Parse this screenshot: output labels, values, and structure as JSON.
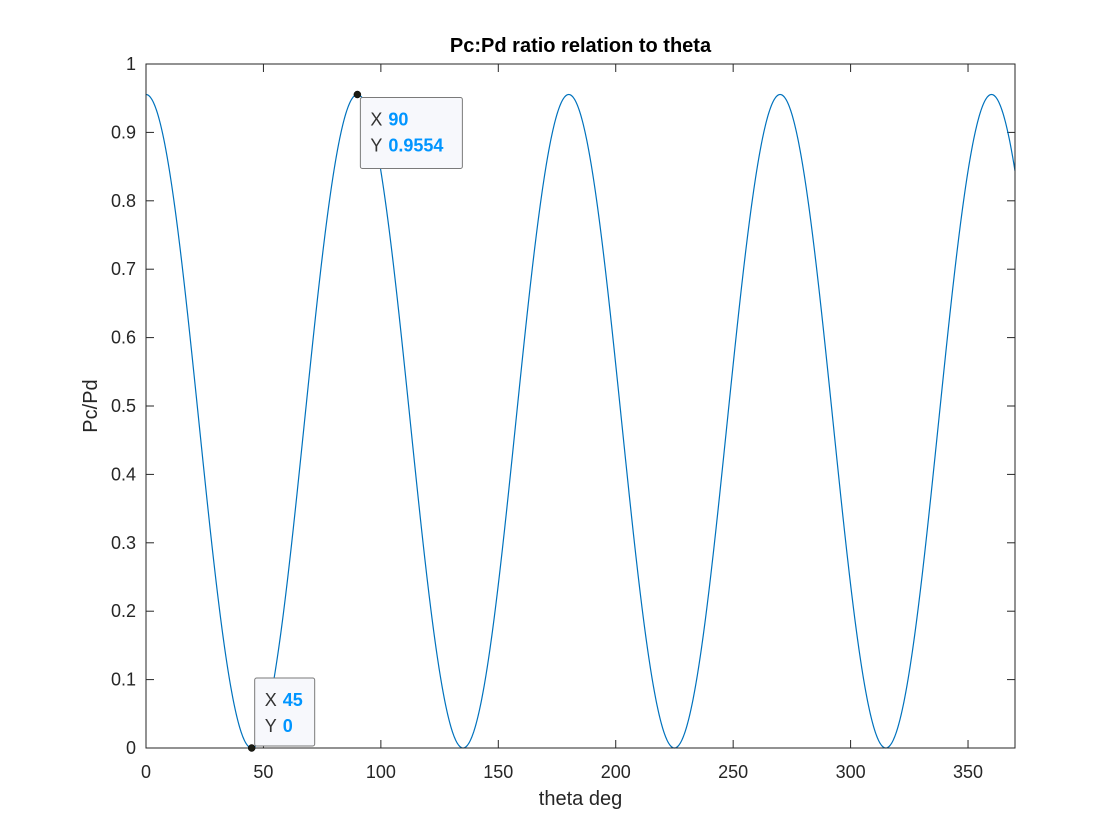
{
  "chart_data": {
    "type": "line",
    "title": "Pc:Pd ratio relation to theta",
    "xlabel": "theta deg",
    "ylabel": "Pc/Pd",
    "xlim": [
      0,
      370
    ],
    "ylim": [
      0,
      1
    ],
    "xticks": [
      0,
      50,
      100,
      150,
      200,
      250,
      300,
      350
    ],
    "yticks": [
      0,
      0.1,
      0.2,
      0.3,
      0.4,
      0.5,
      0.6,
      0.7,
      0.8,
      0.9,
      1
    ],
    "ytick_labels": [
      "0",
      "0.1",
      "0.2",
      "0.3",
      "0.4",
      "0.5",
      "0.6",
      "0.7",
      "0.8",
      "0.9",
      "1"
    ],
    "grid": false,
    "series": [
      {
        "function": "0.9554 * cos^2(2*theta)",
        "x_range": [
          0,
          370
        ],
        "amplitude": 0.9554,
        "period_deg": 90,
        "color": "#0072BD"
      }
    ],
    "datatips": [
      {
        "x_label": "X",
        "y_label": "Y",
        "x": "45",
        "y": "0"
      },
      {
        "x_label": "X",
        "y_label": "Y",
        "x": "90",
        "y": "0.9554"
      }
    ],
    "colors": {
      "line": "#0072BD",
      "datatip_value": "#0095FF",
      "axis": "#262626"
    }
  }
}
